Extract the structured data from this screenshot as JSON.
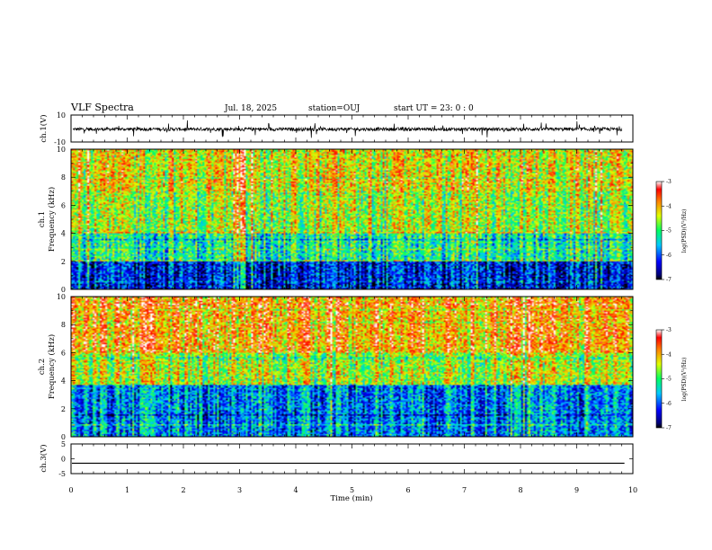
{
  "header": {
    "title": "VLF Spectra",
    "date": "Jul. 18, 2025",
    "station": "station=OUJ",
    "start": "start  UT =   23: 0  : 0"
  },
  "chart_data": [
    {
      "type": "line",
      "ylabel": "ch.1(V)",
      "xlim": [
        0,
        10
      ],
      "ylim": [
        -10,
        10
      ],
      "yticks": [
        "10",
        "-10"
      ],
      "signal": {
        "baseline": -0.5,
        "noise_amplitude": 2.5,
        "spike_amplitude": 6
      }
    },
    {
      "type": "heatmap",
      "ylabel": "ch.1\nFrequency (kHz)",
      "xlim": [
        0,
        10
      ],
      "ylim": [
        0,
        10
      ],
      "yticks": [
        "0",
        "2",
        "4",
        "6",
        "8",
        "10"
      ],
      "colorbar": {
        "label": "log(PSD)(V²/Hz)",
        "range": [
          -7,
          -3
        ],
        "ticks": [
          "-3",
          "-4",
          "-5",
          "-6",
          "-7"
        ]
      },
      "bands": [
        {
          "fmin": 0,
          "fmax": 2,
          "level": -6.3
        },
        {
          "fmin": 2,
          "fmax": 4,
          "level": -5.2
        },
        {
          "fmin": 4,
          "fmax": 7,
          "level": -4.6
        },
        {
          "fmin": 7,
          "fmax": 10,
          "level": -4.3
        }
      ]
    },
    {
      "type": "heatmap",
      "ylabel": "ch.2\nFrequency (kHz)",
      "xlim": [
        0,
        10
      ],
      "ylim": [
        0,
        10
      ],
      "yticks": [
        "0",
        "2",
        "4",
        "6",
        "8",
        "10"
      ],
      "colorbar": {
        "label": "log(PSD)(V²/Hz)",
        "range": [
          -7,
          -3
        ],
        "ticks": [
          "-3",
          "-4",
          "-5",
          "-6",
          "-7"
        ]
      },
      "bands": [
        {
          "fmin": 0,
          "fmax": 3.7,
          "level": -5.8
        },
        {
          "fmin": 3.7,
          "fmax": 6,
          "level": -4.5
        },
        {
          "fmin": 6,
          "fmax": 10,
          "level": -3.9
        }
      ]
    },
    {
      "type": "line",
      "ylabel": "ch.3(V)",
      "xlabel": "Time (min)",
      "xlim": [
        0,
        10
      ],
      "ylim": [
        -5,
        5
      ],
      "yticks": [
        "5",
        "0",
        "-5"
      ],
      "xticks": [
        "0",
        "1",
        "2",
        "3",
        "4",
        "5",
        "6",
        "7",
        "8",
        "9",
        "10"
      ],
      "signal": {
        "constant": -1.5,
        "data_end": 9.85
      }
    }
  ]
}
